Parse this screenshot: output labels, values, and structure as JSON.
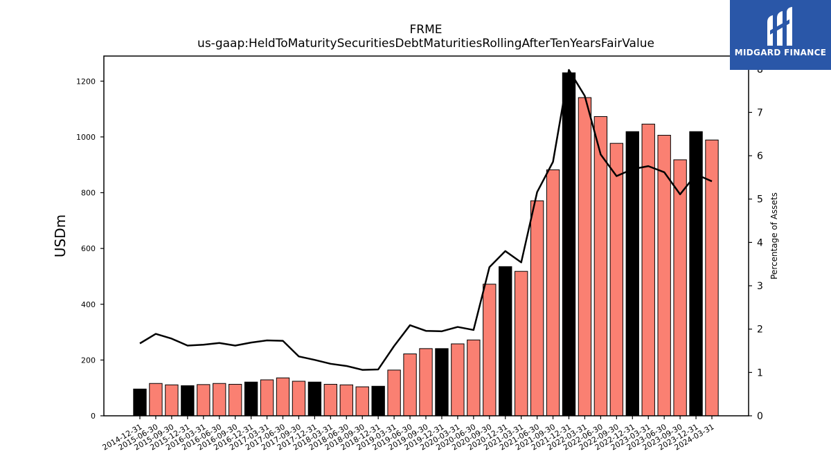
{
  "chart_data": {
    "type": "bar",
    "title": "FRME",
    "subtitle": "us-gaap:HeldToMaturitySecuritiesDebtMaturitiesRollingAfterTenYearsFairValue",
    "ylabel": "USDm",
    "y2label": "Percentage of Assets",
    "ylim": [
      0,
      1290
    ],
    "y2lim": [
      0,
      8.3
    ],
    "yticks": [
      0,
      200,
      400,
      600,
      800,
      1000,
      1200
    ],
    "y2ticks": [
      0,
      1,
      2,
      3,
      4,
      5,
      6,
      7,
      8
    ],
    "categories": [
      "2014-12-31",
      "2015-06-30",
      "2015-09-30",
      "2015-12-31",
      "2016-03-31",
      "2016-06-30",
      "2016-09-30",
      "2016-12-31",
      "2017-03-31",
      "2017-06-30",
      "2017-09-30",
      "2017-12-31",
      "2018-03-31",
      "2018-06-30",
      "2018-09-30",
      "2018-12-31",
      "2019-03-31",
      "2019-06-30",
      "2019-09-30",
      "2019-12-31",
      "2020-03-31",
      "2020-06-30",
      "2020-09-30",
      "2020-12-31",
      "2021-03-31",
      "2021-06-30",
      "2021-09-30",
      "2021-12-31",
      "2022-03-31",
      "2022-06-30",
      "2022-09-30",
      "2022-12-31",
      "2023-03-31",
      "2023-06-30",
      "2023-09-30",
      "2023-12-31",
      "2024-03-31"
    ],
    "series": [
      {
        "type": "bar",
        "axis": "left",
        "values": [
          96,
          116,
          111,
          108,
          112,
          116,
          113,
          121,
          129,
          136,
          124,
          121,
          113,
          111,
          104,
          106,
          164,
          222,
          241,
          241,
          258,
          272,
          472,
          535,
          518,
          771,
          882,
          1230,
          1141,
          1073,
          977,
          1019,
          1046,
          1006,
          918,
          1019,
          989
        ],
        "colors": [
          "#000000",
          "#fa8072",
          "#fa8072",
          "#000000",
          "#fa8072",
          "#fa8072",
          "#fa8072",
          "#000000",
          "#fa8072",
          "#fa8072",
          "#fa8072",
          "#000000",
          "#fa8072",
          "#fa8072",
          "#fa8072",
          "#000000",
          "#fa8072",
          "#fa8072",
          "#fa8072",
          "#000000",
          "#fa8072",
          "#fa8072",
          "#fa8072",
          "#000000",
          "#fa8072",
          "#fa8072",
          "#fa8072",
          "#000000",
          "#fa8072",
          "#fa8072",
          "#fa8072",
          "#000000",
          "#fa8072",
          "#fa8072",
          "#fa8072",
          "#000000",
          "#fa8072"
        ]
      },
      {
        "type": "line",
        "axis": "right",
        "color": "#000000",
        "values": [
          1.67,
          1.89,
          1.78,
          1.62,
          1.64,
          1.68,
          1.62,
          1.69,
          1.74,
          1.73,
          1.37,
          1.29,
          1.2,
          1.15,
          1.06,
          1.07,
          1.61,
          2.09,
          1.96,
          1.95,
          2.05,
          1.98,
          3.43,
          3.8,
          3.54,
          5.16,
          5.86,
          7.98,
          7.38,
          6.03,
          5.53,
          5.69,
          5.76,
          5.62,
          5.11,
          5.57,
          5.41
        ]
      }
    ],
    "legend": "none",
    "grid": false
  },
  "logo": {
    "text": "MIDGARD FINANCE"
  }
}
